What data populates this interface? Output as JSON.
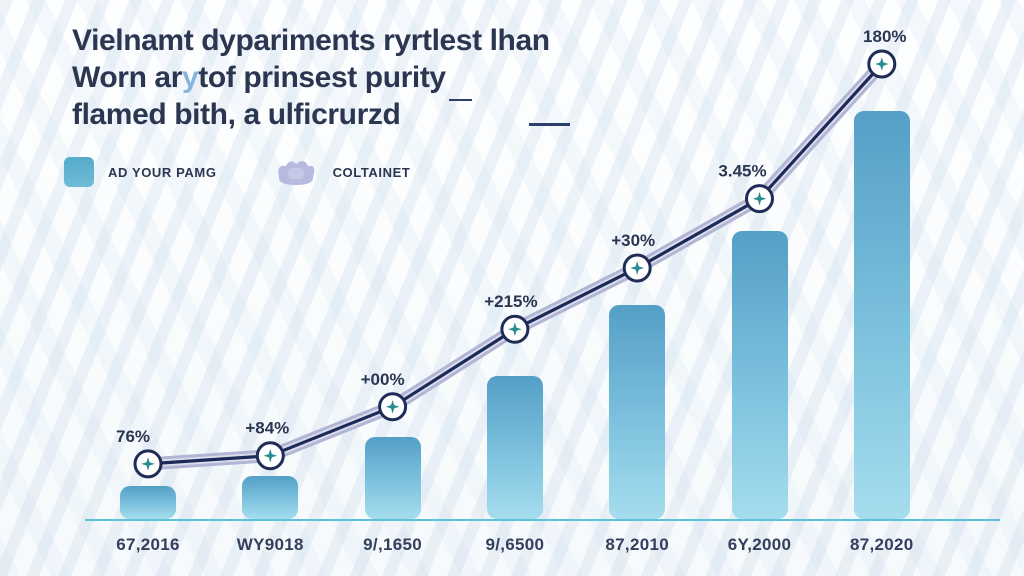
{
  "title": {
    "line1": "Vielnamt dypariments ryrtlest lhan",
    "line2_pre": "Worn ar",
    "line2_accent": "y",
    "line2_post": "tof prinsest purity",
    "line3": "flamed bith, a ulficrurzd"
  },
  "legend": {
    "item1_label": "AD YOUR PAMG",
    "item2_label": "COLTAINET"
  },
  "colors": {
    "bar_top": "#549fc6",
    "bar_bottom": "#a6ddee",
    "line_band_outer": "#b2b5d3",
    "line_band_inner": "#dcdeee",
    "line_core": "#1c2a58",
    "marker_fill": "#ffffff",
    "marker_ring": "#1f2c55",
    "marker_glyph": "#2b8c90",
    "baseline": "#5ec1d8",
    "text_dark": "#2b3650",
    "legend_swatch": "#55abc9",
    "legend_icon": "#b7bade"
  },
  "chart_data": {
    "type": "bar+line combo (growth infographic)",
    "categories": [
      "67,2016",
      "WY9018",
      "9/,1650",
      "9/,6500",
      "87,2010",
      "6Y,2000",
      "87,2020"
    ],
    "series": [
      {
        "name": "AD YOUR PAMG",
        "type": "bar",
        "values": [
          8,
          10.5,
          20,
          35,
          52.5,
          70.5,
          100
        ],
        "unit": "relative bar height, tallest bar = 100"
      },
      {
        "name": "COLTAINET",
        "type": "line",
        "values": [
          14,
          16,
          28,
          47,
          62,
          79,
          112
        ],
        "point_labels": [
          "76%",
          "+84%",
          "+00%",
          "+215%",
          "+30%",
          "3.45%",
          "180%"
        ]
      }
    ],
    "ylim": [
      0,
      115
    ],
    "grid": "off",
    "legend_position": "top-left",
    "annotations": "each line point is a circled teal four-point star marker with a percentage label above"
  }
}
